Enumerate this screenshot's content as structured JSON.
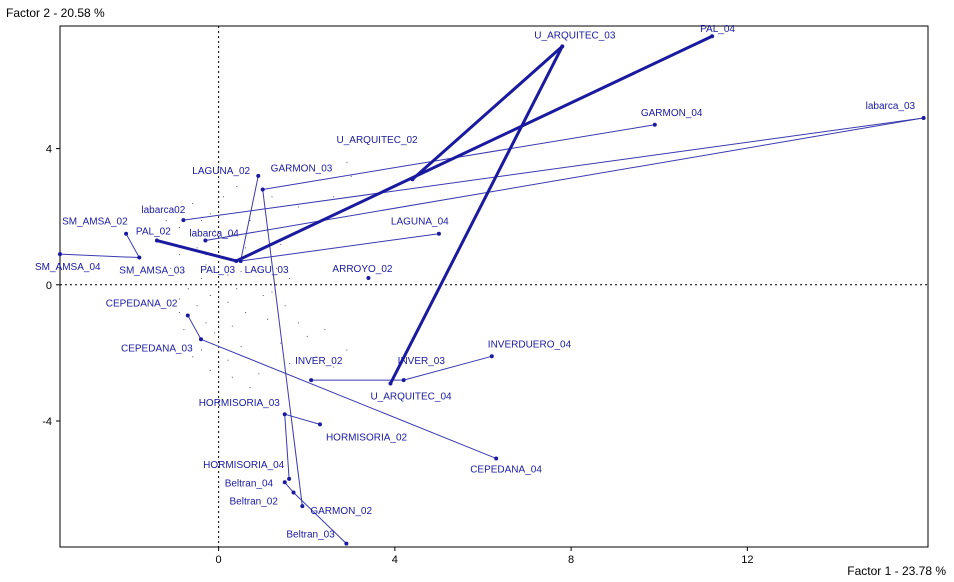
{
  "chart_data": {
    "type": "scatter",
    "title": "",
    "ylabel": "Factor 2 - 20.58 %",
    "xlabel": "Factor 1 - 23.78 %",
    "xlim": [
      -3.6,
      16.1
    ],
    "ylim": [
      -7.7,
      7.6
    ],
    "xticks": [
      0,
      4,
      8,
      12
    ],
    "yticks": [
      4,
      0,
      -4
    ],
    "reference_lines": {
      "x": 0,
      "y": 0,
      "style": "dotted"
    },
    "colors": {
      "points": "#1a1aa0",
      "thick_lines": "#1a1aa0",
      "thin_lines": "#3a3ab0",
      "background_points": "#555555"
    },
    "points": [
      {
        "name": "U_ARQUITEC_03",
        "x": 7.8,
        "y": 7.0
      },
      {
        "name": "PAL_04",
        "x": 11.2,
        "y": 7.3
      },
      {
        "name": "GARMON_04",
        "x": 9.9,
        "y": 4.7
      },
      {
        "name": "labarca_03",
        "x": 16.0,
        "y": 4.9
      },
      {
        "name": "U_ARQUITEC_02",
        "x": 4.4,
        "y": 3.1
      },
      {
        "name": "LAGUNA_02",
        "x": 0.9,
        "y": 3.2
      },
      {
        "name": "GARMON_03",
        "x": 1.0,
        "y": 2.8
      },
      {
        "name": "labarca02",
        "x": -0.8,
        "y": 1.9
      },
      {
        "name": "SM_AMSA_02",
        "x": -2.1,
        "y": 1.5
      },
      {
        "name": "PAL_02",
        "x": -1.4,
        "y": 1.3
      },
      {
        "name": "labarca_04",
        "x": -0.3,
        "y": 1.3
      },
      {
        "name": "LAGUNA_04",
        "x": 5.0,
        "y": 1.5
      },
      {
        "name": "SM_AMSA_04",
        "x": -3.6,
        "y": 0.9
      },
      {
        "name": "SM_AMSA_03",
        "x": -1.8,
        "y": 0.8
      },
      {
        "name": "PAL_03",
        "x": 0.4,
        "y": 0.7
      },
      {
        "name": "LAGU_03",
        "x": 0.5,
        "y": 0.7
      },
      {
        "name": "ARROYO_02",
        "x": 3.4,
        "y": 0.2
      },
      {
        "name": "CEPEDANA_02",
        "x": -0.7,
        "y": -0.9
      },
      {
        "name": "CEPEDANA_03",
        "x": -0.4,
        "y": -1.6
      },
      {
        "name": "INVERDUERO_04",
        "x": 6.2,
        "y": -2.1
      },
      {
        "name": "INVER_02",
        "x": 2.1,
        "y": -2.8
      },
      {
        "name": "INVER_03",
        "x": 4.2,
        "y": -2.8
      },
      {
        "name": "U_ARQUITEC_04",
        "x": 3.9,
        "y": -2.9
      },
      {
        "name": "HORMISORIA_03",
        "x": 1.5,
        "y": -3.8
      },
      {
        "name": "HORMISORIA_02",
        "x": 2.3,
        "y": -4.1
      },
      {
        "name": "CEPEDANA_04",
        "x": 6.3,
        "y": -5.1
      },
      {
        "name": "HORMISORIA_04",
        "x": 1.6,
        "y": -5.7
      },
      {
        "name": "Beltran_04",
        "x": 1.5,
        "y": -5.8
      },
      {
        "name": "Beltran_02",
        "x": 1.7,
        "y": -6.1
      },
      {
        "name": "GARMON_02",
        "x": 1.9,
        "y": -6.5
      },
      {
        "name": "Beltran_03",
        "x": 2.9,
        "y": -7.6
      }
    ],
    "thick_segments": [
      [
        "PAL_02",
        "PAL_03"
      ],
      [
        "PAL_03",
        "PAL_04"
      ],
      [
        "U_ARQUITEC_02",
        "U_ARQUITEC_03"
      ],
      [
        "U_ARQUITEC_03",
        "U_ARQUITEC_04"
      ]
    ],
    "thin_segments": [
      [
        "labarca02",
        "labarca_03"
      ],
      [
        "labarca_03",
        "labarca_04"
      ],
      [
        "GARMON_03",
        "GARMON_04"
      ],
      [
        "GARMON_03",
        "GARMON_02"
      ],
      [
        "LAGUNA_02",
        "LAGU_03"
      ],
      [
        "LAGU_03",
        "LAGUNA_04"
      ],
      [
        "SM_AMSA_02",
        "SM_AMSA_03"
      ],
      [
        "SM_AMSA_03",
        "SM_AMSA_04"
      ],
      [
        "CEPEDANA_02",
        "CEPEDANA_03"
      ],
      [
        "CEPEDANA_03",
        "CEPEDANA_04"
      ],
      [
        "INVER_02",
        "INVER_03"
      ],
      [
        "INVER_03",
        "INVERDUERO_04"
      ],
      [
        "HORMISORIA_02",
        "HORMISORIA_03"
      ],
      [
        "HORMISORIA_03",
        "HORMISORIA_04"
      ],
      [
        "Beltran_02",
        "Beltran_03"
      ],
      [
        "Beltran_02",
        "Beltran_04"
      ]
    ],
    "background_points": [
      [
        -1.0,
        2.2
      ],
      [
        -0.6,
        2.4
      ],
      [
        -0.9,
        1.7
      ],
      [
        -0.4,
        1.9
      ],
      [
        -0.2,
        2.1
      ],
      [
        -1.2,
        1.9
      ],
      [
        -0.6,
        1.5
      ],
      [
        -0.1,
        1.6
      ],
      [
        -0.5,
        1.1
      ],
      [
        -0.9,
        0.9
      ],
      [
        -0.3,
        0.6
      ],
      [
        -0.8,
        0.4
      ],
      [
        -1.1,
        0.5
      ],
      [
        -0.4,
        0.2
      ],
      [
        -0.7,
        -0.1
      ],
      [
        -0.2,
        -0.3
      ],
      [
        -0.9,
        -0.4
      ],
      [
        -0.5,
        -0.6
      ],
      [
        -0.3,
        -1.1
      ],
      [
        -0.8,
        -1.3
      ],
      [
        -0.1,
        -1.4
      ],
      [
        -0.4,
        -1.9
      ],
      [
        -0.6,
        -2.1
      ],
      [
        -0.2,
        -2.5
      ],
      [
        0.3,
        -2.7
      ],
      [
        0.2,
        -2.2
      ],
      [
        0.5,
        -1.8
      ],
      [
        0.3,
        -1.2
      ],
      [
        0.6,
        -0.8
      ],
      [
        0.2,
        -0.5
      ],
      [
        0.4,
        -0.1
      ],
      [
        0.2,
        0.3
      ],
      [
        0.6,
        1.1
      ],
      [
        0.3,
        1.5
      ],
      [
        0.7,
        1.9
      ],
      [
        1.1,
        1.6
      ],
      [
        1.4,
        1.2
      ],
      [
        1.3,
        0.5
      ],
      [
        1.6,
        0.2
      ],
      [
        1.2,
        -0.2
      ],
      [
        1.5,
        -0.6
      ],
      [
        1.1,
        -1.0
      ],
      [
        1.8,
        -1.1
      ],
      [
        1.4,
        -1.7
      ],
      [
        2.0,
        -1.5
      ],
      [
        2.4,
        -1.3
      ],
      [
        2.2,
        -2.1
      ],
      [
        2.9,
        -1.9
      ],
      [
        2.6,
        -2.4
      ],
      [
        1.6,
        -2.3
      ],
      [
        0.9,
        -2.6
      ],
      [
        0.7,
        -3.0
      ],
      [
        2.6,
        2.6
      ],
      [
        3.0,
        3.2
      ],
      [
        2.9,
        3.6
      ],
      [
        1.8,
        2.3
      ],
      [
        0.1,
        2.6
      ],
      [
        0.4,
        2.9
      ],
      [
        1.2,
        2.6
      ],
      [
        -0.3,
        0.9
      ],
      [
        -0.9,
        -0.8
      ],
      [
        0.5,
        0.4
      ],
      [
        0.9,
        0.5
      ],
      [
        1.0,
        -0.3
      ]
    ]
  }
}
